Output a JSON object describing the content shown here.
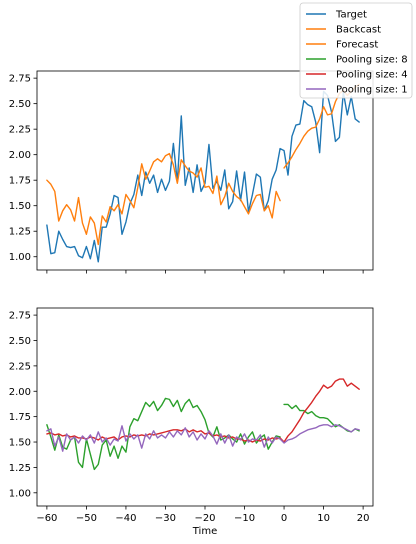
{
  "figure": {
    "xlabel": "Time",
    "x_ticks": [
      -60,
      -50,
      -40,
      -30,
      -20,
      -10,
      0,
      10,
      20
    ],
    "y_ticks": [
      1.0,
      1.25,
      1.5,
      1.75,
      2.0,
      2.25,
      2.5,
      2.75
    ],
    "colors": {
      "target": "#1f77b4",
      "backcast": "#ff7f0e",
      "forecast": "#ff7f0e",
      "pool8": "#2ca02c",
      "pool4": "#d62728",
      "pool1": "#9467bd"
    }
  },
  "chart_data": [
    {
      "type": "line",
      "panel": "top",
      "xlim": [
        -62.5,
        22.5
      ],
      "ylim": [
        0.87,
        2.82
      ],
      "legend": "upper-right (outside, overlapping panel)",
      "series": [
        {
          "name": "Target",
          "key": "target",
          "x": [
            -60,
            -59,
            -58,
            -57,
            -56,
            -55,
            -54,
            -53,
            -52,
            -51,
            -50,
            -49,
            -48,
            -47,
            -46,
            -45,
            -44,
            -43,
            -42,
            -41,
            -40,
            -39,
            -38,
            -37,
            -36,
            -35,
            -34,
            -33,
            -32,
            -31,
            -30,
            -29,
            -28,
            -27,
            -26,
            -25,
            -24,
            -23,
            -22,
            -21,
            -20,
            -19,
            -18,
            -17,
            -16,
            -15,
            -14,
            -13,
            -12,
            -11,
            -10,
            -9,
            -8,
            -7,
            -6,
            -5,
            -4,
            -3,
            -2,
            -1,
            0,
            1,
            2,
            3,
            4,
            5,
            6,
            7,
            8,
            9,
            10,
            11,
            12,
            13,
            14,
            15,
            16,
            17,
            18,
            19
          ],
          "y": [
            1.31,
            1.03,
            1.04,
            1.25,
            1.17,
            1.1,
            1.09,
            1.1,
            1.01,
            0.99,
            1.1,
            0.98,
            1.16,
            0.95,
            1.29,
            1.29,
            1.42,
            1.6,
            1.58,
            1.22,
            1.34,
            1.52,
            1.61,
            1.8,
            1.6,
            1.83,
            1.72,
            1.8,
            1.63,
            1.76,
            1.65,
            1.74,
            2.11,
            1.73,
            2.38,
            1.7,
            1.87,
            1.63,
            1.9,
            1.64,
            1.72,
            2.1,
            1.67,
            1.74,
            1.65,
            1.85,
            1.47,
            1.54,
            1.84,
            1.55,
            1.83,
            1.44,
            1.61,
            1.81,
            1.78,
            1.45,
            1.55,
            1.76,
            1.85,
            2.06,
            2.04,
            1.8,
            2.18,
            2.29,
            2.3,
            2.53,
            2.49,
            2.47,
            2.32,
            2.02,
            2.62,
            2.58,
            2.42,
            2.13,
            2.17,
            2.61,
            2.39,
            2.57,
            2.35,
            2.32
          ]
        },
        {
          "name": "Backcast",
          "key": "backcast",
          "x": [
            -60,
            -59,
            -58,
            -57,
            -56,
            -55,
            -54,
            -53,
            -52,
            -51,
            -50,
            -49,
            -48,
            -47,
            -46,
            -45,
            -44,
            -43,
            -42,
            -41,
            -40,
            -39,
            -38,
            -37,
            -36,
            -35,
            -34,
            -33,
            -32,
            -31,
            -30,
            -29,
            -28,
            -27,
            -26,
            -25,
            -24,
            -23,
            -22,
            -21,
            -20,
            -19,
            -18,
            -17,
            -16,
            -15,
            -14,
            -13,
            -12,
            -11,
            -10,
            -9,
            -8,
            -7,
            -6,
            -5,
            -4,
            -3,
            -2,
            -1
          ],
          "y": [
            1.75,
            1.71,
            1.64,
            1.35,
            1.45,
            1.51,
            1.46,
            1.35,
            1.58,
            1.33,
            1.22,
            1.39,
            1.33,
            1.12,
            1.4,
            1.34,
            1.49,
            1.45,
            1.51,
            1.42,
            1.61,
            1.55,
            1.48,
            1.68,
            1.91,
            1.76,
            1.84,
            1.93,
            1.96,
            1.93,
            1.99,
            2.01,
            1.9,
            1.72,
            1.95,
            1.89,
            1.84,
            1.82,
            1.78,
            1.87,
            1.68,
            1.69,
            1.62,
            1.79,
            1.51,
            1.59,
            1.72,
            1.64,
            1.59,
            1.56,
            1.49,
            1.42,
            1.52,
            1.6,
            1.61,
            1.45,
            1.5,
            1.38,
            1.64,
            1.55
          ]
        },
        {
          "name": "Forecast",
          "key": "forecast",
          "x": [
            0,
            1,
            2,
            3,
            4,
            5,
            6,
            7,
            8,
            9,
            10,
            11,
            12,
            13,
            14,
            15,
            16,
            17,
            18,
            19
          ],
          "y": [
            1.87,
            1.92,
            1.98,
            2.05,
            2.11,
            2.18,
            2.23,
            2.26,
            2.27,
            2.35,
            2.47,
            2.39,
            2.4,
            2.52,
            2.6,
            2.63,
            2.58,
            2.62,
            2.66,
            2.69
          ]
        }
      ]
    },
    {
      "type": "line",
      "panel": "bottom",
      "xlim": [
        -62.5,
        22.5
      ],
      "ylim": [
        0.87,
        2.82
      ],
      "xlabel": "Time",
      "series": [
        {
          "name": "Pooling size: 8",
          "key": "pool8",
          "x": [
            -60,
            -59,
            -58,
            -57,
            -56,
            -55,
            -54,
            -53,
            -52,
            -51,
            -50,
            -49,
            -48,
            -47,
            -46,
            -45,
            -44,
            -43,
            -42,
            -41,
            -40,
            -39,
            -38,
            -37,
            -36,
            -35,
            -34,
            -33,
            -32,
            -31,
            -30,
            -29,
            -28,
            -27,
            -26,
            -25,
            -24,
            -23,
            -22,
            -21,
            -20,
            -19,
            -18,
            -17,
            -16,
            -15,
            -14,
            -13,
            -12,
            -11,
            -10,
            -9,
            -8,
            -7,
            -6,
            -5,
            -4,
            -3,
            -2,
            -1
          ],
          "y": [
            1.67,
            1.55,
            1.42,
            1.57,
            1.45,
            1.43,
            1.52,
            1.55,
            1.3,
            1.25,
            1.53,
            1.38,
            1.23,
            1.28,
            1.47,
            1.52,
            1.36,
            1.46,
            1.34,
            1.46,
            1.4,
            1.65,
            1.73,
            1.71,
            1.8,
            1.89,
            1.85,
            1.9,
            1.81,
            1.86,
            1.93,
            1.92,
            1.85,
            1.91,
            1.8,
            1.88,
            1.92,
            1.84,
            1.86,
            1.8,
            1.72,
            1.59,
            1.55,
            1.65,
            1.52,
            1.54,
            1.57,
            1.53,
            1.5,
            1.58,
            1.48,
            1.55,
            1.6,
            1.49,
            1.54,
            1.57,
            1.43,
            1.5,
            1.56,
            1.55
          ]
        },
        {
          "name": "Pooling size: 8 (forecast)",
          "key": "pool8",
          "x": [
            0,
            1,
            2,
            3,
            4,
            5,
            6,
            7,
            8,
            9,
            10,
            11,
            12,
            13,
            14,
            15,
            16,
            17,
            18,
            19
          ],
          "y": [
            1.87,
            1.87,
            1.83,
            1.86,
            1.81,
            1.81,
            1.78,
            1.8,
            1.76,
            1.74,
            1.74,
            1.73,
            1.69,
            1.65,
            1.67,
            1.64,
            1.61,
            1.6,
            1.63,
            1.61
          ]
        },
        {
          "name": "Pooling size: 4",
          "key": "pool4",
          "x": [
            -60,
            -59,
            -58,
            -57,
            -56,
            -55,
            -54,
            -53,
            -52,
            -51,
            -50,
            -49,
            -48,
            -47,
            -46,
            -45,
            -44,
            -43,
            -42,
            -41,
            -40,
            -39,
            -38,
            -37,
            -36,
            -35,
            -34,
            -33,
            -32,
            -31,
            -30,
            -29,
            -28,
            -27,
            -26,
            -25,
            -24,
            -23,
            -22,
            -21,
            -20,
            -19,
            -18,
            -17,
            -16,
            -15,
            -14,
            -13,
            -12,
            -11,
            -10,
            -9,
            -8,
            -7,
            -6,
            -5,
            -4,
            -3,
            -2,
            -1,
            0,
            1,
            2,
            3,
            4,
            5,
            6,
            7,
            8,
            9,
            10,
            11,
            12,
            13,
            14,
            15,
            16,
            17,
            18,
            19
          ],
          "y": [
            1.58,
            1.59,
            1.57,
            1.58,
            1.56,
            1.57,
            1.55,
            1.56,
            1.54,
            1.54,
            1.53,
            1.55,
            1.54,
            1.52,
            1.55,
            1.53,
            1.54,
            1.55,
            1.52,
            1.55,
            1.56,
            1.55,
            1.57,
            1.56,
            1.57,
            1.56,
            1.58,
            1.57,
            1.58,
            1.59,
            1.6,
            1.61,
            1.62,
            1.62,
            1.61,
            1.63,
            1.6,
            1.62,
            1.6,
            1.61,
            1.58,
            1.59,
            1.56,
            1.57,
            1.55,
            1.56,
            1.54,
            1.55,
            1.53,
            1.53,
            1.51,
            1.52,
            1.5,
            1.52,
            1.51,
            1.53,
            1.52,
            1.54,
            1.53,
            1.54,
            1.5,
            1.56,
            1.6,
            1.66,
            1.72,
            1.79,
            1.84,
            1.89,
            1.95,
            2.0,
            2.06,
            2.03,
            2.05,
            2.1,
            2.12,
            2.12,
            2.05,
            2.08,
            2.05,
            2.02
          ]
        },
        {
          "name": "Pooling size: 1",
          "key": "pool1",
          "x": [
            -60,
            -59,
            -58,
            -57,
            -56,
            -55,
            -54,
            -53,
            -52,
            -51,
            -50,
            -49,
            -48,
            -47,
            -46,
            -45,
            -44,
            -43,
            -42,
            -41,
            -40,
            -39,
            -38,
            -37,
            -36,
            -35,
            -34,
            -33,
            -32,
            -31,
            -30,
            -29,
            -28,
            -27,
            -26,
            -25,
            -24,
            -23,
            -22,
            -21,
            -20,
            -19,
            -18,
            -17,
            -16,
            -15,
            -14,
            -13,
            -12,
            -11,
            -10,
            -9,
            -8,
            -7,
            -6,
            -5,
            -4,
            -3,
            -2,
            -1,
            0,
            1,
            2,
            3,
            4,
            5,
            6,
            7,
            8,
            9,
            10,
            11,
            12,
            13,
            14,
            15,
            16,
            17,
            18,
            19
          ],
          "y": [
            1.61,
            1.63,
            1.46,
            1.55,
            1.41,
            1.58,
            1.52,
            1.55,
            1.49,
            1.56,
            1.52,
            1.57,
            1.49,
            1.6,
            1.5,
            1.54,
            1.47,
            1.53,
            1.51,
            1.66,
            1.51,
            1.58,
            1.53,
            1.57,
            1.44,
            1.58,
            1.53,
            1.61,
            1.54,
            1.57,
            1.54,
            1.6,
            1.55,
            1.61,
            1.57,
            1.64,
            1.55,
            1.6,
            1.52,
            1.58,
            1.53,
            1.61,
            1.56,
            1.48,
            1.58,
            1.49,
            1.57,
            1.46,
            1.55,
            1.52,
            1.58,
            1.5,
            1.53,
            1.52,
            1.57,
            1.45,
            1.55,
            1.49,
            1.55,
            1.53,
            1.49,
            1.52,
            1.53,
            1.55,
            1.58,
            1.6,
            1.62,
            1.63,
            1.64,
            1.66,
            1.67,
            1.67,
            1.65,
            1.67,
            1.66,
            1.64,
            1.62,
            1.6,
            1.63,
            1.62
          ]
        }
      ]
    }
  ]
}
